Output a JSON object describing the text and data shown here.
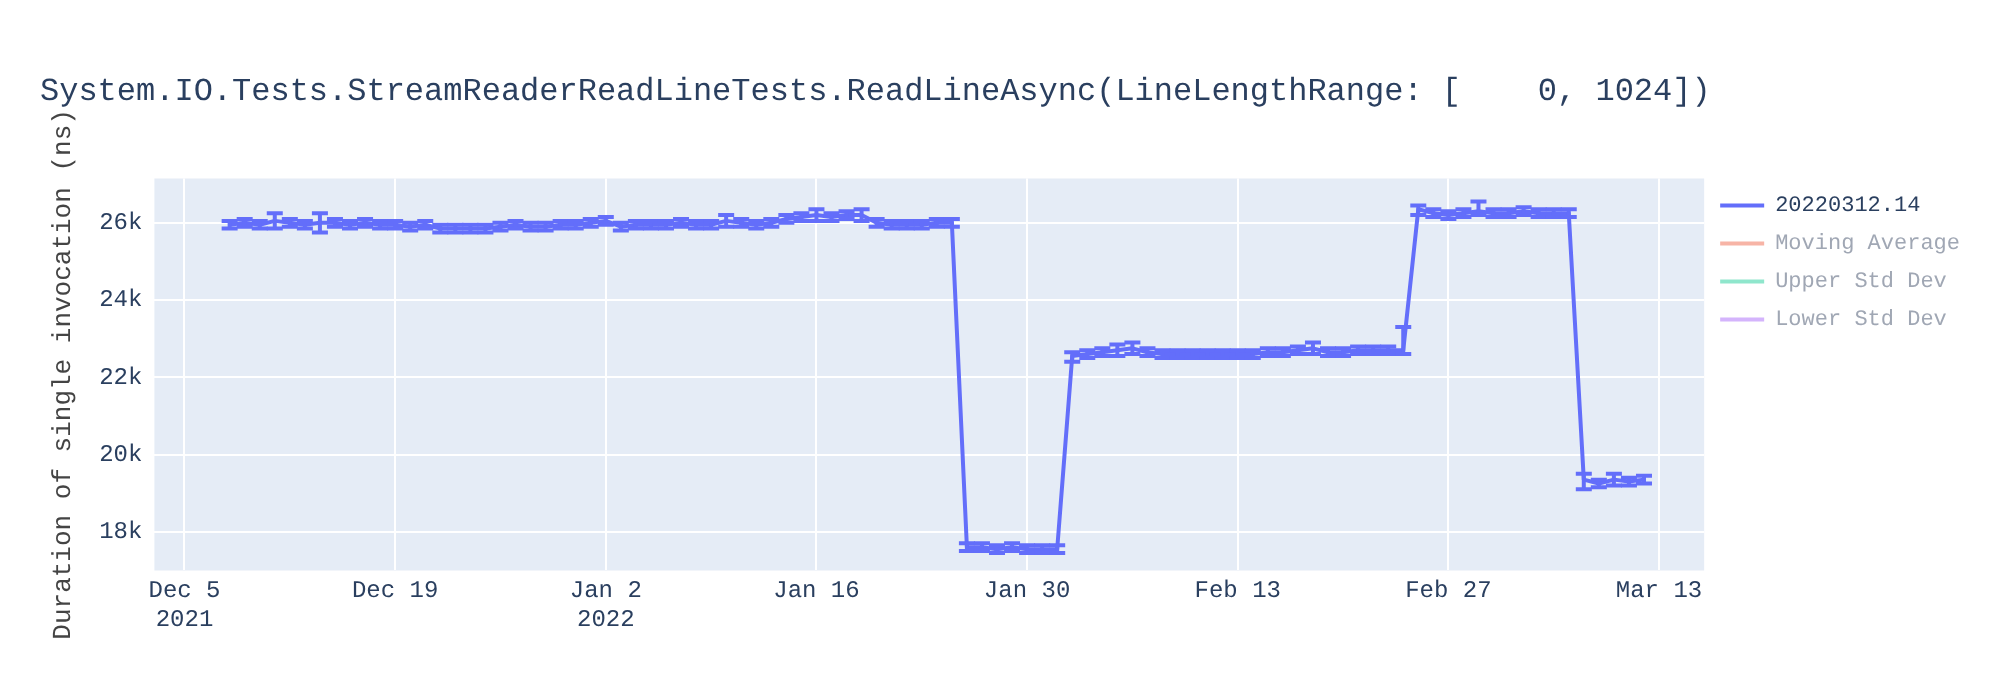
{
  "chart_data": {
    "type": "line",
    "title": "System.IO.Tests.StreamReaderReadLineTests.ReadLineAsync(LineLengthRange: [    0, 1024])",
    "ylabel": "Duration of single invocation (ns)",
    "x": [
      "2021-12-08",
      "2021-12-09",
      "2021-12-10",
      "2021-12-11",
      "2021-12-12",
      "2021-12-13",
      "2021-12-14",
      "2021-12-15",
      "2021-12-16",
      "2021-12-17",
      "2021-12-18",
      "2021-12-19",
      "2021-12-20",
      "2021-12-21",
      "2021-12-22",
      "2021-12-23",
      "2021-12-24",
      "2021-12-25",
      "2021-12-26",
      "2021-12-27",
      "2021-12-28",
      "2021-12-29",
      "2021-12-30",
      "2021-12-31",
      "2022-01-01",
      "2022-01-02",
      "2022-01-03",
      "2022-01-04",
      "2022-01-05",
      "2022-01-06",
      "2022-01-07",
      "2022-01-08",
      "2022-01-09",
      "2022-01-10",
      "2022-01-11",
      "2022-01-12",
      "2022-01-13",
      "2022-01-14",
      "2022-01-15",
      "2022-01-16",
      "2022-01-17",
      "2022-01-18",
      "2022-01-19",
      "2022-01-20",
      "2022-01-21",
      "2022-01-22",
      "2022-01-23",
      "2022-01-24",
      "2022-01-25",
      "2022-01-26",
      "2022-01-27",
      "2022-01-28",
      "2022-01-29",
      "2022-01-30",
      "2022-01-31",
      "2022-02-01",
      "2022-02-02",
      "2022-02-03",
      "2022-02-04",
      "2022-02-05",
      "2022-02-06",
      "2022-02-07",
      "2022-02-08",
      "2022-02-09",
      "2022-02-10",
      "2022-02-11",
      "2022-02-12",
      "2022-02-13",
      "2022-02-14",
      "2022-02-15",
      "2022-02-16",
      "2022-02-17",
      "2022-02-18",
      "2022-02-19",
      "2022-02-20",
      "2022-02-21",
      "2022-02-22",
      "2022-02-23",
      "2022-02-24",
      "2022-02-25",
      "2022-02-26",
      "2022-02-27",
      "2022-02-28",
      "2022-03-01",
      "2022-03-02",
      "2022-03-03",
      "2022-03-04",
      "2022-03-05",
      "2022-03-06",
      "2022-03-07",
      "2022-03-08",
      "2022-03-09",
      "2022-03-10",
      "2022-03-11",
      "2022-03-12"
    ],
    "series": [
      {
        "name": "20220312.14",
        "color": "#636efa",
        "values": [
          25950,
          26000,
          25950,
          26050,
          26000,
          25950,
          26000,
          26000,
          25950,
          26000,
          25950,
          25950,
          25900,
          25950,
          25850,
          25850,
          25850,
          25850,
          25900,
          25950,
          25900,
          25900,
          25950,
          25950,
          26000,
          26050,
          25900,
          25950,
          25950,
          25950,
          26000,
          25950,
          25950,
          26050,
          26000,
          25950,
          26000,
          26100,
          26150,
          26200,
          26150,
          26200,
          26200,
          26000,
          25950,
          25950,
          25950,
          26000,
          26000,
          17600,
          17600,
          17550,
          17600,
          17550,
          17550,
          17550,
          22550,
          22600,
          22650,
          22700,
          22750,
          22650,
          22600,
          22600,
          22600,
          22600,
          22600,
          22600,
          22600,
          22650,
          22650,
          22700,
          22750,
          22650,
          22650,
          22700,
          22700,
          22700,
          22700,
          26350,
          26250,
          26200,
          26250,
          26300,
          26250,
          26250,
          26300,
          26250,
          26250,
          26250,
          19350,
          19250,
          19350,
          19300,
          19350
        ],
        "errors": [
          100,
          100,
          100,
          200,
          100,
          100,
          250,
          100,
          100,
          100,
          100,
          100,
          100,
          100,
          100,
          100,
          100,
          100,
          100,
          100,
          100,
          100,
          100,
          100,
          100,
          100,
          100,
          100,
          100,
          100,
          100,
          100,
          100,
          150,
          100,
          100,
          100,
          100,
          100,
          150,
          100,
          100,
          150,
          100,
          100,
          100,
          100,
          100,
          100,
          [
            17500,
            17700
          ],
          100,
          100,
          100,
          100,
          100,
          100,
          [
            22400,
            22650
          ],
          100,
          100,
          150,
          150,
          100,
          100,
          100,
          100,
          100,
          100,
          100,
          100,
          100,
          100,
          100,
          150,
          100,
          100,
          100,
          100,
          100,
          [
            22600,
            23300
          ],
          [
            26200,
            26450
          ],
          100,
          100,
          100,
          [
            26200,
            26550
          ],
          100,
          100,
          100,
          100,
          100,
          100,
          [
            19100,
            19500
          ],
          100,
          150,
          100,
          100
        ]
      },
      {
        "name": "Moving Average",
        "color": "#f7b4a6",
        "values": [
          null,
          null,
          null,
          null,
          null,
          null,
          null,
          null,
          null,
          null,
          null,
          null,
          null,
          null,
          null,
          null,
          null,
          null,
          null,
          null,
          null,
          null,
          null,
          null,
          null,
          null,
          null,
          null,
          null,
          null,
          null,
          null,
          null,
          null,
          null,
          null,
          null,
          null,
          null,
          null,
          null,
          null,
          null,
          null,
          null,
          null,
          null,
          null,
          null,
          null,
          null,
          null,
          null,
          null,
          null,
          null,
          null,
          null,
          null,
          null,
          null,
          null,
          null,
          null,
          null,
          null,
          null,
          null,
          null,
          null,
          null,
          null,
          null,
          null,
          null,
          null,
          null,
          null,
          null,
          null,
          null,
          null,
          null,
          null,
          null,
          null,
          null,
          null,
          null,
          null,
          null,
          null,
          null,
          null,
          null
        ]
      },
      {
        "name": "Upper Std Dev",
        "color": "#8fe6cc",
        "values": [
          null,
          null,
          null,
          null,
          null,
          null,
          null,
          null,
          null,
          null,
          null,
          null,
          null,
          null,
          null,
          null,
          null,
          null,
          null,
          null,
          null,
          null,
          null,
          null,
          null,
          null,
          null,
          null,
          null,
          null,
          null,
          null,
          null,
          null,
          null,
          null,
          null,
          null,
          null,
          null,
          null,
          null,
          null,
          null,
          null,
          null,
          null,
          null,
          null,
          null,
          null,
          null,
          null,
          null,
          null,
          null,
          null,
          null,
          null,
          null,
          null,
          null,
          null,
          null,
          null,
          null,
          null,
          null,
          null,
          null,
          null,
          null,
          null,
          null,
          null,
          null,
          null,
          null,
          null,
          null,
          null,
          null,
          null,
          null,
          null,
          null,
          null,
          null,
          null,
          null,
          null,
          null,
          null,
          null,
          null
        ]
      },
      {
        "name": "Lower Std Dev",
        "color": "#d4b4fc",
        "values": [
          null,
          null,
          null,
          null,
          null,
          null,
          null,
          null,
          null,
          null,
          null,
          null,
          null,
          null,
          null,
          null,
          null,
          null,
          null,
          null,
          null,
          null,
          null,
          null,
          null,
          null,
          null,
          null,
          null,
          null,
          null,
          null,
          null,
          null,
          null,
          null,
          null,
          null,
          null,
          null,
          null,
          null,
          null,
          null,
          null,
          null,
          null,
          null,
          null,
          null,
          null,
          null,
          null,
          null,
          null,
          null,
          null,
          null,
          null,
          null,
          null,
          null,
          null,
          null,
          null,
          null,
          null,
          null,
          null,
          null,
          null,
          null,
          null,
          null,
          null,
          null,
          null,
          null,
          null,
          null,
          null,
          null,
          null,
          null,
          null,
          null,
          null,
          null,
          null,
          null,
          null,
          null,
          null,
          null,
          null
        ]
      }
    ],
    "xlim": [
      "2021-12-03",
      "2022-03-16"
    ],
    "xticks": [
      {
        "value": "2021-12-05",
        "label": "Dec 5\n2021"
      },
      {
        "value": "2021-12-19",
        "label": "Dec 19"
      },
      {
        "value": "2022-01-02",
        "label": "Jan 2\n2022"
      },
      {
        "value": "2022-01-16",
        "label": "Jan 16"
      },
      {
        "value": "2022-01-30",
        "label": "Jan 30"
      },
      {
        "value": "2022-02-13",
        "label": "Feb 13"
      },
      {
        "value": "2022-02-27",
        "label": "Feb 27"
      },
      {
        "value": "2022-03-13",
        "label": "Mar 13"
      }
    ],
    "ylim": [
      17000,
      27150
    ],
    "yticks": [
      {
        "value": 18000,
        "label": "18k"
      },
      {
        "value": 20000,
        "label": "20k"
      },
      {
        "value": 22000,
        "label": "22k"
      },
      {
        "value": 24000,
        "label": "24k"
      },
      {
        "value": 26000,
        "label": "26k"
      }
    ],
    "grid": true,
    "legend": "right",
    "marker": "none",
    "line_style": "solid"
  }
}
